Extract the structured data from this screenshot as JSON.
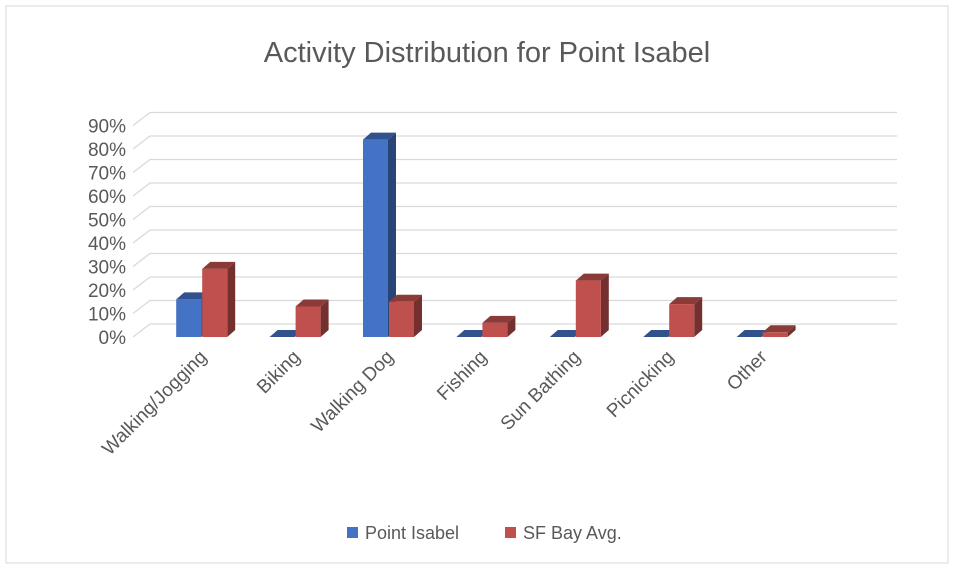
{
  "chart_data": {
    "type": "bar",
    "title": "Activity Distribution for Point Isabel",
    "categories": [
      "Walking/Jogging",
      "Biking",
      "Walking Dog",
      "Fishing",
      "Sun Bathing",
      "Picnicking",
      "Other"
    ],
    "series": [
      {
        "name": "Point Isabel",
        "color": "#4472c4",
        "values": [
          16,
          0,
          84,
          0,
          0,
          0,
          0
        ]
      },
      {
        "name": "SF Bay Avg.",
        "color": "#c0504d",
        "values": [
          29,
          13,
          15,
          6,
          24,
          14,
          2
        ]
      }
    ],
    "y_ticks": [
      "0%",
      "10%",
      "20%",
      "30%",
      "40%",
      "50%",
      "60%",
      "70%",
      "80%",
      "90%"
    ],
    "ylim": [
      0,
      90
    ],
    "grid": true,
    "legend_position": "bottom",
    "xlabel": "",
    "ylabel": ""
  }
}
